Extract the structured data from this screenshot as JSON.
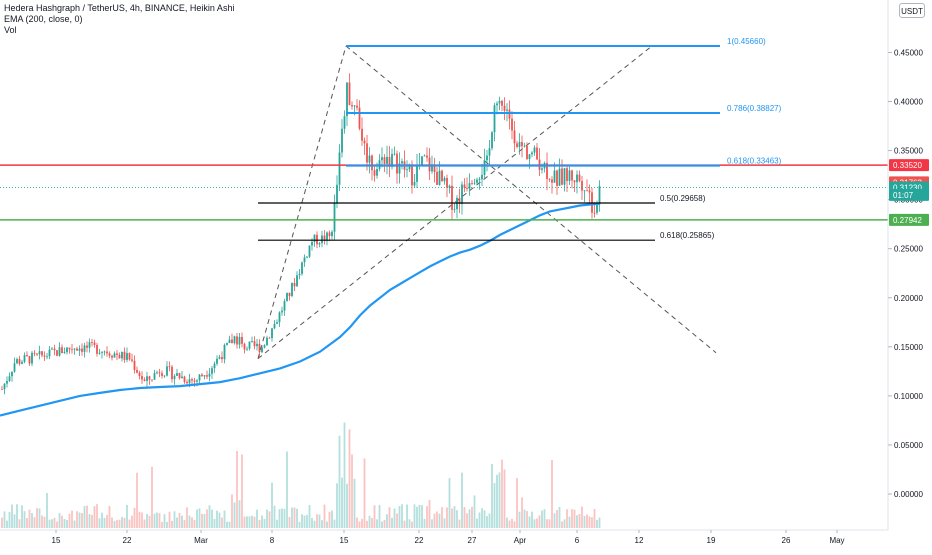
{
  "legend": {
    "title": "Hedera Hashgraph / TetherUS, 4h, BINANCE, Heikin Ashi",
    "ema": "EMA (200, close, 0)",
    "vol": "Vol"
  },
  "currency_label": "USDT",
  "colors": {
    "up": "#26a69a",
    "down": "#ef5350",
    "ema": "#2196f3",
    "fib_top": "#2196f3",
    "red_line": "#f23645",
    "green_line": "#4caf50",
    "black_line": "#000000",
    "dashed": "#555555",
    "last_price": "#26a69a"
  },
  "chart_data": {
    "type": "candlestick",
    "x_ticks": [
      "15",
      "22",
      "Mar",
      "8",
      "15",
      "22",
      "27",
      "Apr",
      "6",
      "12",
      "19",
      "26",
      "May"
    ],
    "y_ticks": [
      "0.45000",
      "0.40000",
      "0.35000",
      "0.30000",
      "0.25000",
      "0.20000",
      "0.15000",
      "0.10000",
      "0.05000",
      "0.00000"
    ],
    "y_tick_values": [
      0.45,
      0.4,
      0.35,
      0.3,
      0.25,
      0.2,
      0.15,
      0.1,
      0.05,
      0.0
    ],
    "price_badges": [
      {
        "label": "0.33520",
        "value": 0.3352,
        "color": "#f23645"
      },
      {
        "label": "0.31763",
        "value": 0.31763,
        "color": "#ef5350"
      },
      {
        "label": "0.31230",
        "value": 0.3123,
        "color": "#26a69a"
      },
      {
        "label": "01:07",
        "value": 0.3048,
        "color": "#26a69a"
      },
      {
        "label": "0.27942",
        "value": 0.27942,
        "color": "#4caf50"
      }
    ],
    "fib_levels": [
      {
        "label": "1(0.45660)",
        "value": 0.4566,
        "color": "#2196f3"
      },
      {
        "label": "0.786(0.38827)",
        "value": 0.38827,
        "color": "#2196f3"
      },
      {
        "label": "0.618(0.33463)",
        "value": 0.33463,
        "color": "#2196f3"
      },
      {
        "label": "0.5(0.29658)",
        "value": 0.29658,
        "color": "#000000"
      },
      {
        "label": "0.618(0.25865)",
        "value": 0.25865,
        "color": "#000000"
      }
    ],
    "horizontal_lines": [
      {
        "value": 0.3352,
        "color": "#f23645"
      },
      {
        "value": 0.27942,
        "color": "#4caf50"
      }
    ],
    "ema_points": [
      [
        0,
        0.08
      ],
      [
        20,
        0.085
      ],
      [
        40,
        0.09
      ],
      [
        60,
        0.095
      ],
      [
        80,
        0.1
      ],
      [
        100,
        0.103
      ],
      [
        120,
        0.106
      ],
      [
        140,
        0.108
      ],
      [
        160,
        0.109
      ],
      [
        180,
        0.11
      ],
      [
        200,
        0.112
      ],
      [
        220,
        0.114
      ],
      [
        240,
        0.118
      ],
      [
        260,
        0.123
      ],
      [
        280,
        0.128
      ],
      [
        300,
        0.135
      ],
      [
        320,
        0.145
      ],
      [
        340,
        0.16
      ],
      [
        350,
        0.17
      ],
      [
        360,
        0.182
      ],
      [
        370,
        0.192
      ],
      [
        380,
        0.2
      ],
      [
        390,
        0.208
      ],
      [
        400,
        0.214
      ],
      [
        410,
        0.22
      ],
      [
        420,
        0.226
      ],
      [
        430,
        0.232
      ],
      [
        440,
        0.237
      ],
      [
        450,
        0.242
      ],
      [
        460,
        0.246
      ],
      [
        470,
        0.249
      ],
      [
        480,
        0.253
      ],
      [
        490,
        0.258
      ],
      [
        500,
        0.264
      ],
      [
        510,
        0.269
      ],
      [
        520,
        0.274
      ],
      [
        530,
        0.279
      ],
      [
        540,
        0.284
      ],
      [
        550,
        0.288
      ],
      [
        560,
        0.29
      ],
      [
        570,
        0.292
      ],
      [
        580,
        0.294
      ],
      [
        590,
        0.295
      ],
      [
        600,
        0.296
      ]
    ],
    "dashed_lines": [
      {
        "from": [
          258,
          0.138
        ],
        "to": [
          346,
          0.4566
        ]
      },
      {
        "from": [
          346,
          0.4566
        ],
        "to": [
          716,
          0.144
        ]
      },
      {
        "from": [
          258,
          0.138
        ],
        "to": [
          652,
          0.4566
        ]
      }
    ],
    "candles_up_color": "#26a69a",
    "candles_down_color": "#ef5350"
  }
}
